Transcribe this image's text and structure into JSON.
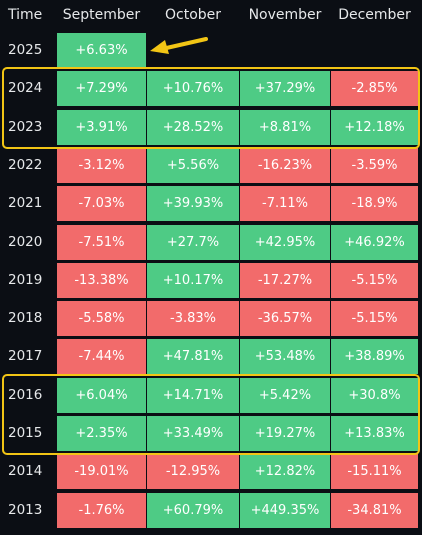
{
  "colors": {
    "positive": "#4ecb85",
    "negative": "#f26b6b",
    "highlight": "#f2c515",
    "background": "#0b0e14",
    "text": "#e6e8ea"
  },
  "chart_data": {
    "type": "heatmap",
    "title": "",
    "corner_label": "Time",
    "columns": [
      "September",
      "October",
      "November",
      "December"
    ],
    "rows": [
      {
        "year": "2025",
        "values": [
          "+6.63%",
          null,
          null,
          null
        ]
      },
      {
        "year": "2024",
        "values": [
          "+7.29%",
          "+10.76%",
          "+37.29%",
          "-2.85%"
        ]
      },
      {
        "year": "2023",
        "values": [
          "+3.91%",
          "+28.52%",
          "+8.81%",
          "+12.18%"
        ]
      },
      {
        "year": "2022",
        "values": [
          "-3.12%",
          "+5.56%",
          "-16.23%",
          "-3.59%"
        ]
      },
      {
        "year": "2021",
        "values": [
          "-7.03%",
          "+39.93%",
          "-7.11%",
          "-18.9%"
        ]
      },
      {
        "year": "2020",
        "values": [
          "-7.51%",
          "+27.7%",
          "+42.95%",
          "+46.92%"
        ]
      },
      {
        "year": "2019",
        "values": [
          "-13.38%",
          "+10.17%",
          "-17.27%",
          "-5.15%"
        ]
      },
      {
        "year": "2018",
        "values": [
          "-5.58%",
          "-3.83%",
          "-36.57%",
          "-5.15%"
        ]
      },
      {
        "year": "2017",
        "values": [
          "-7.44%",
          "+47.81%",
          "+53.48%",
          "+38.89%"
        ]
      },
      {
        "year": "2016",
        "values": [
          "+6.04%",
          "+14.71%",
          "+5.42%",
          "+30.8%"
        ]
      },
      {
        "year": "2015",
        "values": [
          "+2.35%",
          "+33.49%",
          "+19.27%",
          "+13.83%"
        ]
      },
      {
        "year": "2014",
        "values": [
          "-19.01%",
          "-12.95%",
          "+12.82%",
          "-15.11%"
        ]
      },
      {
        "year": "2013",
        "values": [
          "-1.76%",
          "+60.79%",
          "+449.35%",
          "-34.81%"
        ]
      }
    ],
    "highlighted_years": [
      [
        "2024",
        "2023"
      ],
      [
        "2016",
        "2015"
      ]
    ],
    "arrow_target": "2025"
  }
}
